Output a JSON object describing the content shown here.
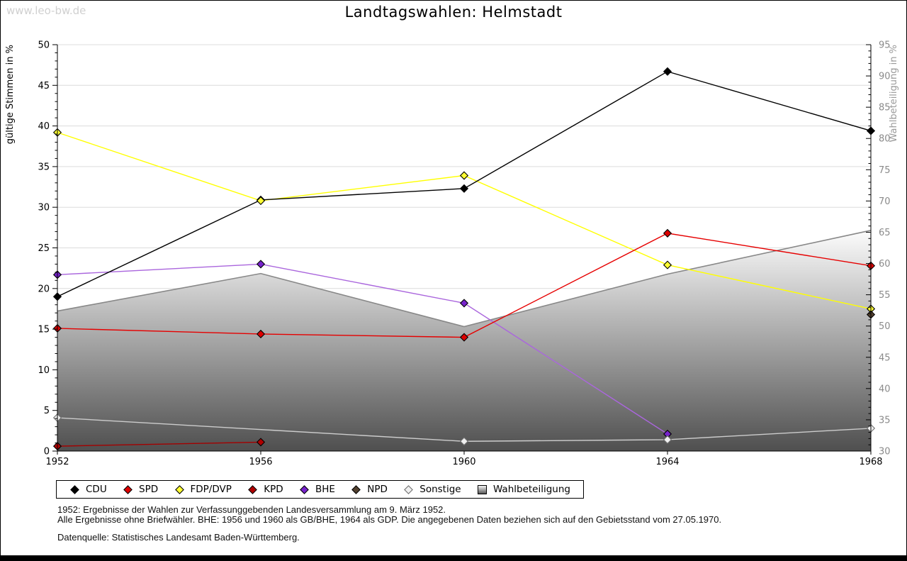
{
  "page": {
    "watermark": "www.leo-bw.de",
    "title": "Landtagswahlen: Helmstadt"
  },
  "chart_data": {
    "type": "line",
    "title": "Landtagswahlen: Helmstadt",
    "x": [
      1952,
      1956,
      1960,
      1964,
      1968
    ],
    "left_axis": {
      "label": "gültige Stimmen in %",
      "min": 0,
      "max": 50,
      "tick_step": 5,
      "minor_step": 1
    },
    "right_axis": {
      "label": "Wahlbeteiligung in %",
      "min": 30,
      "max": 95,
      "tick_step": 5,
      "minor_step": 1
    },
    "grid": true,
    "legend_position": "bottom",
    "series": [
      {
        "name": "CDU",
        "axis": "left",
        "kind": "line",
        "color": "#000000",
        "marker_color": "#000000",
        "values": [
          19.0,
          30.9,
          32.3,
          46.7,
          39.4
        ]
      },
      {
        "name": "SPD",
        "axis": "left",
        "kind": "line",
        "color": "#e60000",
        "marker_color": "#dd0000",
        "values": [
          15.1,
          14.4,
          14.0,
          26.8,
          22.8
        ]
      },
      {
        "name": "FDP/DVP",
        "axis": "left",
        "kind": "line",
        "color": "#ffff00",
        "marker_color": "#ffff33",
        "values": [
          39.2,
          30.8,
          33.9,
          22.9,
          17.5
        ]
      },
      {
        "name": "KPD",
        "axis": "left",
        "kind": "line",
        "color": "#a40000",
        "marker_color": "#b00000",
        "values": [
          0.6,
          1.1,
          null,
          null,
          null
        ]
      },
      {
        "name": "BHE",
        "axis": "left",
        "kind": "line",
        "color": "#aa66dd",
        "marker_color": "#7722cc",
        "values": [
          21.7,
          23.0,
          18.2,
          2.1,
          null
        ]
      },
      {
        "name": "NPD",
        "axis": "left",
        "kind": "line",
        "color": "#52402e",
        "marker_color": "#52402e",
        "values": [
          null,
          null,
          null,
          null,
          16.8
        ]
      },
      {
        "name": "Sonstige",
        "axis": "left",
        "kind": "line",
        "color": "#cccccc",
        "marker_color": "#f0f0f0",
        "marker_stroke": "#707070",
        "values": [
          4.1,
          null,
          1.2,
          1.4,
          2.8
        ]
      },
      {
        "name": "Wahlbeteiligung",
        "axis": "right",
        "kind": "area",
        "color": "#888888",
        "fill_top": "#fcfcfc",
        "fill_bottom": "#4f4f4f",
        "values": [
          52.4,
          58.4,
          49.9,
          58.3,
          65.3
        ]
      }
    ]
  },
  "footnotes": {
    "line1": "1952: Ergebnisse der Wahlen zur Verfassunggebenden Landesversammlung am 9. März 1952.",
    "line2": "Alle Ergebnisse ohne Briefwähler. BHE: 1956 und 1960 als GB/BHE, 1964 als GDP. Die angegebenen Daten beziehen sich auf den Gebietsstand vom 27.05.1970.",
    "source": "Datenquelle: Statistisches Landesamt Baden-Württemberg."
  }
}
